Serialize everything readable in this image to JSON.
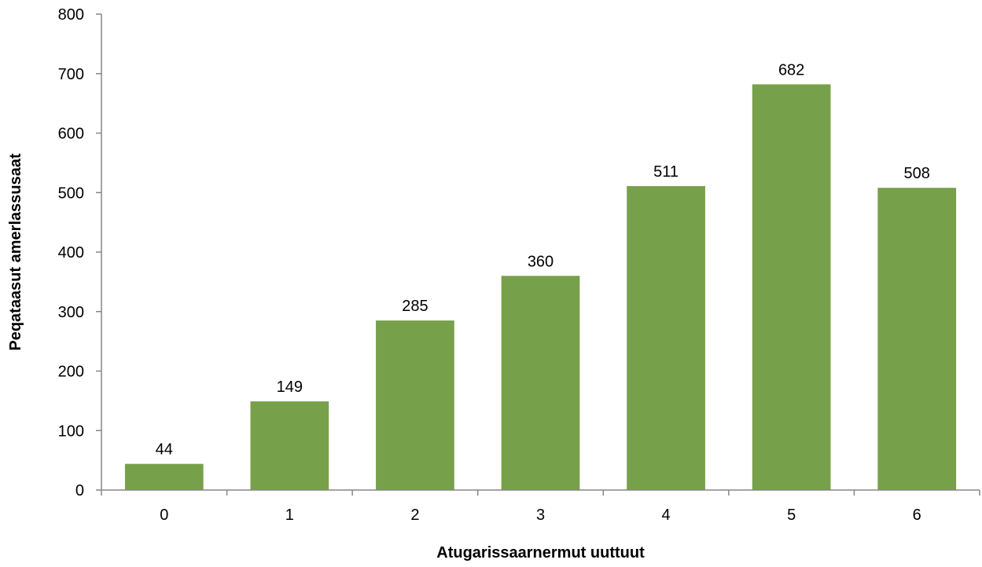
{
  "chart_data": {
    "type": "bar",
    "categories": [
      "0",
      "1",
      "2",
      "3",
      "4",
      "5",
      "6"
    ],
    "values": [
      44,
      149,
      285,
      360,
      511,
      682,
      508
    ],
    "title": "",
    "xlabel": "Atugarissaarnermut uuttuut",
    "ylabel": "Peqataasut amerlassusaat",
    "ylim": [
      0,
      800
    ],
    "yticks": [
      0,
      100,
      200,
      300,
      400,
      500,
      600,
      700,
      800
    ],
    "grid": false,
    "legend": "none",
    "bar_color": "#77a04b",
    "data_labels": true
  }
}
